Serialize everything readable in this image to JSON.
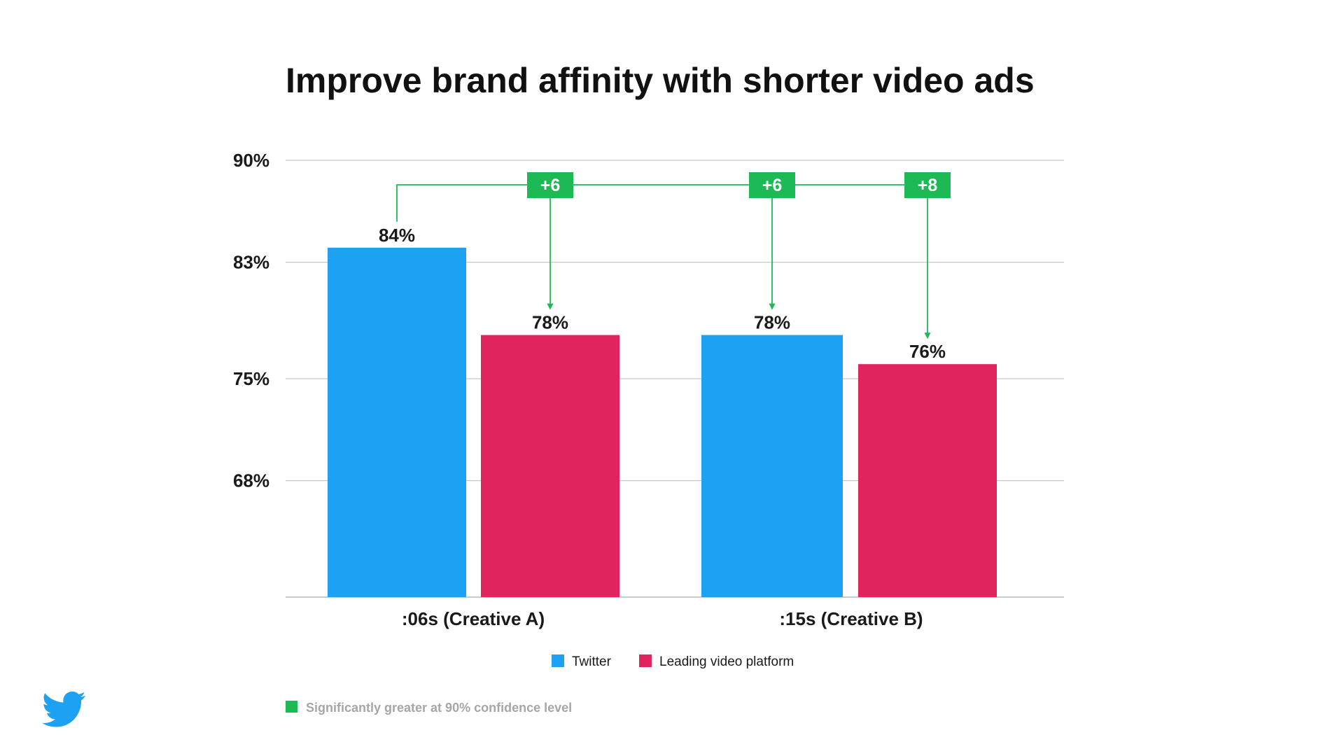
{
  "chart_data": {
    "type": "bar",
    "title": "Improve brand affinity with shorter video ads",
    "categories": [
      ":06s (Creative A)",
      ":15s (Creative B)"
    ],
    "series": [
      {
        "name": "Twitter",
        "color": "#1DA1F2",
        "values": [
          84,
          78
        ],
        "labels": [
          "84%",
          "78%"
        ]
      },
      {
        "name": "Leading video platform",
        "color": "#E0245E",
        "values": [
          78,
          76
        ],
        "labels": [
          "78%",
          "76%"
        ]
      }
    ],
    "ylim": [
      60,
      90
    ],
    "yticks": [
      {
        "value": 90,
        "label": "90%"
      },
      {
        "value": 83,
        "label": "83%"
      },
      {
        "value": 75,
        "label": "75%"
      },
      {
        "value": 68,
        "label": "68%"
      }
    ],
    "grid": true,
    "legend_placement": "bottom-center",
    "significance": {
      "source": "Twitter :06s (Creative A)",
      "comparisons": [
        {
          "label": "+6",
          "target": "Leading video platform :06s (Creative A)"
        },
        {
          "label": "+6",
          "target": "Twitter :15s (Creative B)"
        },
        {
          "label": "+8",
          "target": "Leading video platform :15s (Creative B)"
        }
      ]
    },
    "footnote": "Significantly greater at 90% confidence level"
  },
  "colors": {
    "twitter": "#1DA1F2",
    "platform": "#E0245E",
    "significance": "#1DB954",
    "grid": "#c8c8c8",
    "footnote": "#a6a6a6"
  },
  "logo": {
    "icon": "twitter-bird-icon"
  }
}
